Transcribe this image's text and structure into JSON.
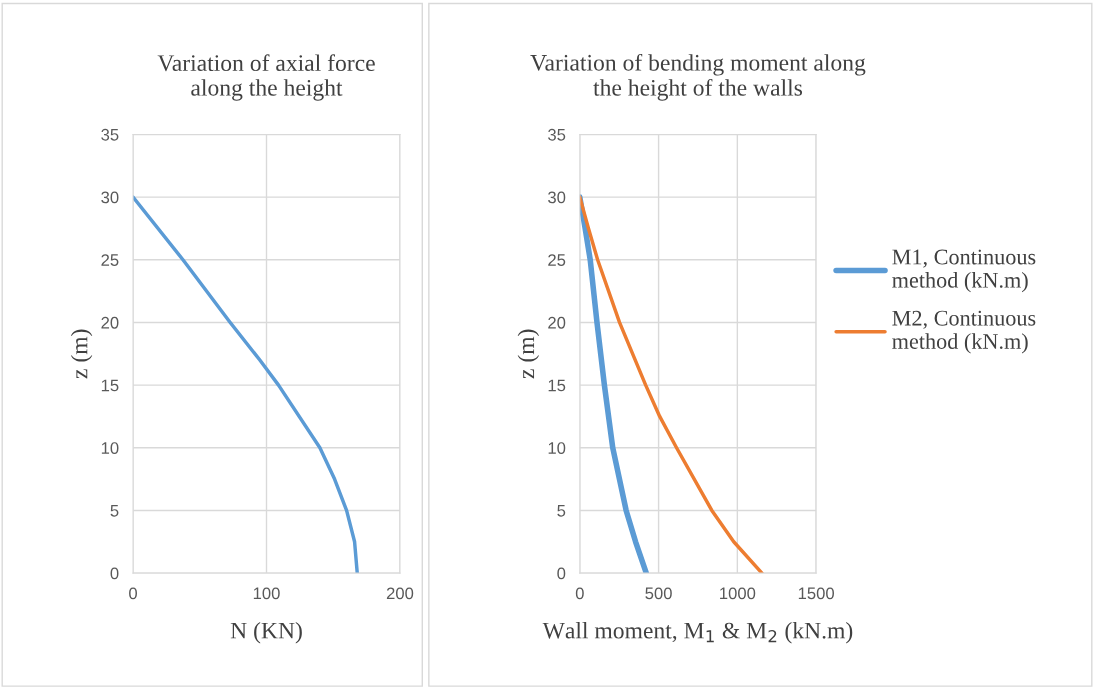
{
  "chart_data": [
    {
      "type": "line",
      "title": "Variation of axial force\nalong the height",
      "xlabel": "N (KN)",
      "ylabel": "z (m)",
      "xlim": [
        0,
        200
      ],
      "xticks": [
        0,
        100,
        200
      ],
      "ylim": [
        0,
        35
      ],
      "yticks": [
        0,
        5,
        10,
        15,
        20,
        25,
        30,
        35
      ],
      "grid": true,
      "legend": false,
      "series": [
        {
          "color": "#5b9bd5",
          "x": [
            0,
            37.4,
            72.8,
            95,
            109,
            140,
            151,
            160,
            166,
            168
          ],
          "values": [
            30,
            25,
            20,
            17,
            15,
            10,
            7.5,
            5,
            2.5,
            0
          ]
        }
      ]
    },
    {
      "type": "line",
      "title": "Variation of bending moment along\nthe height of the walls",
      "xlabel": "Wall moment, M$_{1}$ & M$_{2}$ (kN.m)",
      "ylabel": "z (m)",
      "xlim": [
        0,
        1500
      ],
      "xticks": [
        0,
        500,
        1000,
        1500
      ],
      "ylim": [
        0,
        35
      ],
      "yticks": [
        0,
        5,
        10,
        15,
        20,
        25,
        30,
        35
      ],
      "grid": true,
      "legend": "right",
      "series": [
        {
          "name": "M1, Continuous\nmethod (kN.m)",
          "color": "#5b9bd5",
          "x": [
            0,
            34,
            66,
            109,
            156,
            209,
            294,
            354,
            422
          ],
          "values": [
            30,
            27.5,
            25,
            20,
            15,
            10,
            5,
            2.5,
            0
          ]
        },
        {
          "name": "M2, Continuous\nmethod (kN.m)",
          "color": "#ed7d31",
          "x": [
            0,
            55,
            113,
            252,
            418,
            507,
            614,
            838,
            977,
            1156
          ],
          "values": [
            30,
            27.5,
            25,
            20,
            15,
            12.5,
            10,
            5,
            2.5,
            0
          ]
        }
      ]
    }
  ]
}
